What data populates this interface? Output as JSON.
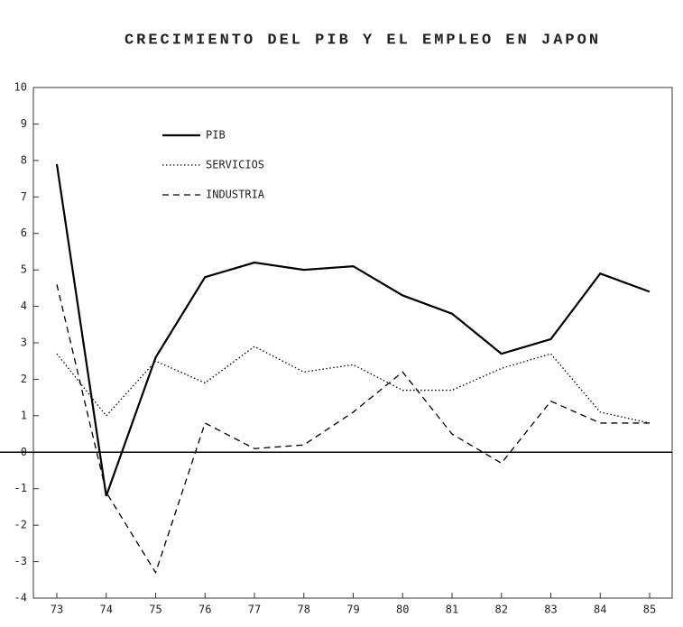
{
  "chart_data": {
    "type": "line",
    "title": "CRECIMIENTO DEL PIB Y EL EMPLEO EN JAPON",
    "categories": [
      "73",
      "74",
      "75",
      "76",
      "77",
      "78",
      "79",
      "80",
      "81",
      "82",
      "83",
      "84",
      "85"
    ],
    "series": [
      {
        "name": "PIB",
        "color": "#000000",
        "style": "solid",
        "values": [
          7.9,
          -1.2,
          2.6,
          4.8,
          5.2,
          5.0,
          5.1,
          4.3,
          3.8,
          2.7,
          3.1,
          4.9,
          4.4
        ]
      },
      {
        "name": "SERVICIOS",
        "color": "#000000",
        "style": "dotted",
        "values": [
          2.7,
          1.0,
          2.5,
          1.9,
          2.9,
          2.2,
          2.4,
          1.7,
          1.7,
          2.3,
          2.7,
          1.1,
          0.8
        ]
      },
      {
        "name": "INDUSTRIA",
        "color": "#000000",
        "style": "dashed",
        "values": [
          4.6,
          -1.1,
          -3.3,
          0.8,
          0.1,
          0.2,
          1.1,
          2.2,
          0.5,
          -0.3,
          1.4,
          0.8,
          0.8
        ]
      }
    ],
    "ylim": [
      -4,
      10
    ],
    "yticks": [
      -4,
      -3,
      -2,
      -1,
      0,
      1,
      2,
      3,
      4,
      5,
      6,
      7,
      8,
      9,
      10
    ],
    "zero_line": true,
    "legend": "top-left"
  }
}
